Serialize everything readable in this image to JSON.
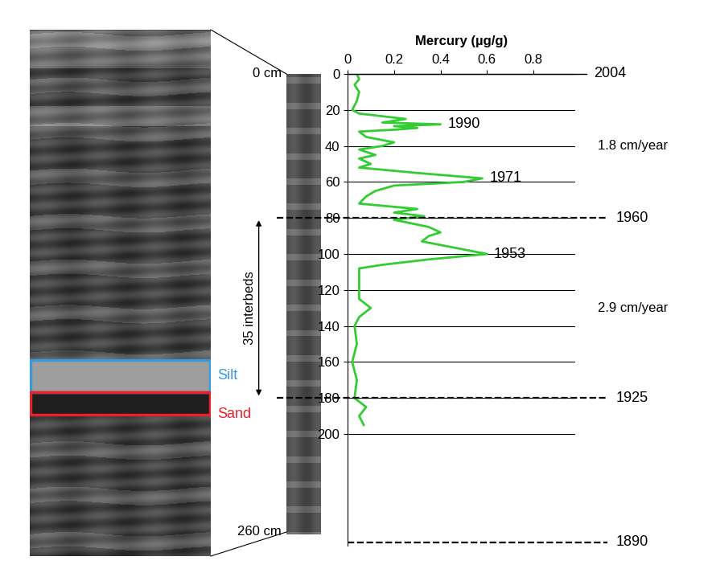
{
  "chart_data": {
    "type": "line",
    "x_label": "Mercury (µg/g)",
    "xlim": [
      0,
      0.98
    ],
    "xticks": [
      0,
      0.2,
      0.4,
      0.6,
      0.8
    ],
    "ylim": [
      262,
      0
    ],
    "yticks": [
      0,
      20,
      40,
      60,
      80,
      100,
      120,
      140,
      160,
      180,
      200
    ],
    "grid": true,
    "color": "#33cc33",
    "y": [
      0,
      3,
      6,
      10,
      15,
      20,
      22,
      25,
      27,
      28,
      29,
      30,
      31,
      32,
      35,
      38,
      40,
      42,
      45,
      47,
      50,
      52,
      55,
      58,
      60,
      62,
      65,
      68,
      72,
      75,
      77,
      79,
      81,
      85,
      88,
      90,
      93,
      100,
      103,
      106,
      108,
      120,
      125,
      130,
      135,
      140,
      150,
      160,
      170,
      180,
      185,
      190,
      195
    ],
    "values": [
      0.04,
      0.05,
      0.03,
      0.05,
      0.04,
      0.02,
      0.05,
      0.25,
      0.15,
      0.4,
      0.2,
      0.3,
      0.2,
      0.05,
      0.08,
      0.2,
      0.15,
      0.05,
      0.12,
      0.05,
      0.1,
      0.05,
      0.3,
      0.58,
      0.5,
      0.2,
      0.12,
      0.08,
      0.05,
      0.3,
      0.2,
      0.33,
      0.2,
      0.35,
      0.4,
      0.35,
      0.32,
      0.6,
      0.35,
      0.15,
      0.05,
      0.05,
      0.05,
      0.1,
      0.05,
      0.03,
      0.04,
      0.02,
      0.04,
      0.03,
      0.08,
      0.05,
      0.07
    ],
    "annotations": [
      {
        "text": "1990",
        "value": 0.4,
        "depth": 28
      },
      {
        "text": "1971",
        "value": 0.58,
        "depth": 58
      },
      {
        "text": "1953",
        "value": 0.6,
        "depth": 100
      }
    ],
    "date_markers": [
      {
        "depth": 0,
        "label": "2004"
      },
      {
        "depth": 80,
        "label": "1960"
      },
      {
        "depth": 180,
        "label": "1925"
      },
      {
        "depth": 260,
        "label": "1890"
      }
    ],
    "rates": [
      "1.8 cm/year",
      "2.9 cm/year"
    ],
    "core": {
      "top_label": "0 cm",
      "bottom_label": "260 cm",
      "interbeds_label": "35 interbeds",
      "layers": [
        {
          "name": "Silt",
          "color": "#3a9ad9"
        },
        {
          "name": "Sand",
          "color": "#e8202a"
        }
      ]
    }
  }
}
